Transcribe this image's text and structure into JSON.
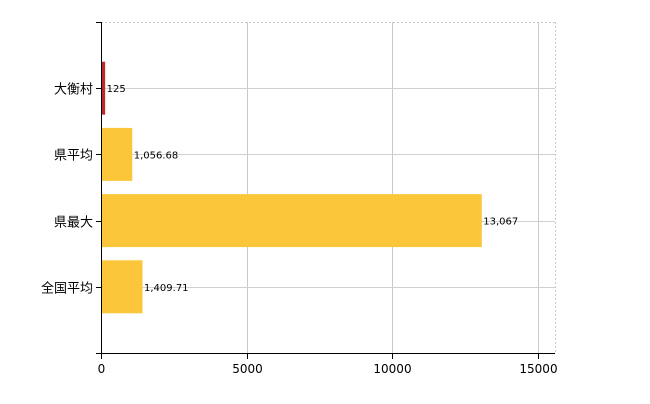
{
  "chart_data": {
    "type": "bar",
    "orientation": "horizontal",
    "categories": [
      "大衡村",
      "県平均",
      "県最大",
      "全国平均"
    ],
    "values": [
      125,
      1056.68,
      13067,
      1409.71
    ],
    "data_labels": [
      "125",
      "1,056.68",
      "13,067",
      "1,409.71"
    ],
    "bar_colors": [
      "#c0282a",
      "#fcc63b",
      "#fcc63b",
      "#fcc63b"
    ],
    "xlim": [
      0,
      15600
    ],
    "xticks": [
      0,
      5000,
      10000,
      15000
    ],
    "xtick_labels": [
      "0",
      "5000",
      "10000",
      "15000"
    ],
    "grid": true,
    "grid_style": "dotted",
    "title": "",
    "xlabel": "",
    "ylabel": ""
  }
}
